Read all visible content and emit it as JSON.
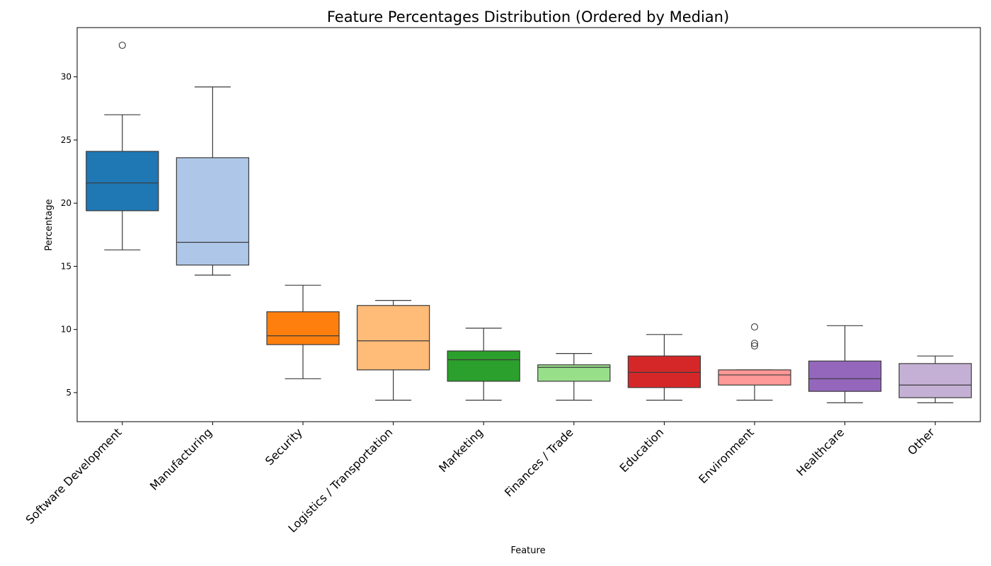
{
  "chart_data": {
    "type": "box",
    "title": "Feature Percentages Distribution (Ordered by Median)",
    "xlabel": "Feature",
    "ylabel": "Percentage",
    "ylim": [
      2.7,
      33.9
    ],
    "yticks": [
      5,
      10,
      15,
      20,
      25,
      30
    ],
    "grid": false,
    "legend": "none",
    "categories": [
      "Software Development",
      "Manufacturing",
      "Security",
      "Logistics / Transportation",
      "Marketing",
      "Finances / Trade",
      "Education",
      "Environment",
      "Healthcare",
      "Other"
    ],
    "boxes": [
      {
        "name": "Software Development",
        "whisker_low": 16.3,
        "q1": 19.4,
        "median": 21.6,
        "q3": 24.1,
        "whisker_high": 27.0,
        "outliers": [
          32.5
        ],
        "color": "#1f77b4"
      },
      {
        "name": "Manufacturing",
        "whisker_low": 14.3,
        "q1": 15.1,
        "median": 16.9,
        "q3": 23.6,
        "whisker_high": 29.2,
        "outliers": [],
        "color": "#aec7e8"
      },
      {
        "name": "Security",
        "whisker_low": 6.1,
        "q1": 8.8,
        "median": 9.5,
        "q3": 11.4,
        "whisker_high": 13.5,
        "outliers": [],
        "color": "#ff7f0e"
      },
      {
        "name": "Logistics / Transportation",
        "whisker_low": 4.4,
        "q1": 6.8,
        "median": 9.1,
        "q3": 11.9,
        "whisker_high": 12.3,
        "outliers": [],
        "color": "#ffbb78"
      },
      {
        "name": "Marketing",
        "whisker_low": 4.4,
        "q1": 5.9,
        "median": 7.6,
        "q3": 8.3,
        "whisker_high": 10.1,
        "outliers": [],
        "color": "#2ca02c"
      },
      {
        "name": "Finances / Trade",
        "whisker_low": 4.4,
        "q1": 5.9,
        "median": 7.0,
        "q3": 7.2,
        "whisker_high": 8.1,
        "outliers": [],
        "color": "#98df8a"
      },
      {
        "name": "Education",
        "whisker_low": 4.4,
        "q1": 5.4,
        "median": 6.6,
        "q3": 7.9,
        "whisker_high": 9.6,
        "outliers": [],
        "color": "#d62728"
      },
      {
        "name": "Environment",
        "whisker_low": 4.4,
        "q1": 5.6,
        "median": 6.4,
        "q3": 6.8,
        "whisker_high": 6.8,
        "outliers": [
          10.2,
          8.9,
          8.7
        ],
        "color": "#ff9896"
      },
      {
        "name": "Healthcare",
        "whisker_low": 4.2,
        "q1": 5.1,
        "median": 6.1,
        "q3": 7.5,
        "whisker_high": 10.3,
        "outliers": [],
        "color": "#9467bd"
      },
      {
        "name": "Other",
        "whisker_low": 4.2,
        "q1": 4.6,
        "median": 5.6,
        "q3": 7.3,
        "whisker_high": 7.9,
        "outliers": [],
        "color": "#c5b0d5"
      }
    ]
  }
}
